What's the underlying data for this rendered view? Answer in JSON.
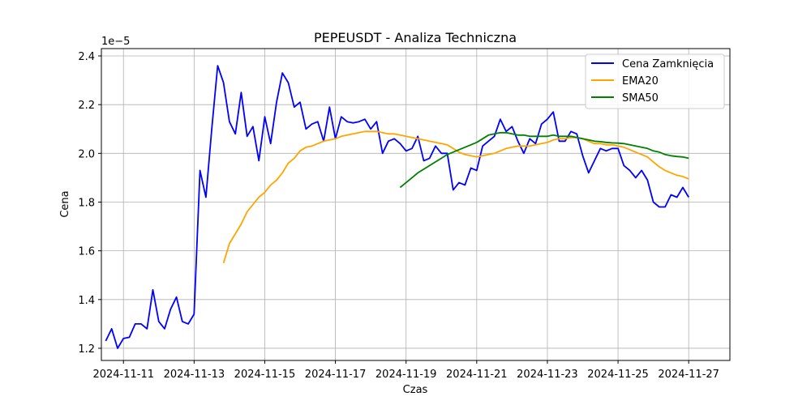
{
  "chart_data": {
    "type": "line",
    "title": "PEPEUSDT - Analiza Techniczna",
    "xlabel": "Czas",
    "ylabel": "Cena",
    "y_offset_label": "1e−5",
    "y_scale_multiplier": 1e-05,
    "x_ticks": [
      "2024-11-11",
      "2024-11-13",
      "2024-11-15",
      "2024-11-17",
      "2024-11-19",
      "2024-11-21",
      "2024-11-23",
      "2024-11-25",
      "2024-11-27"
    ],
    "y_ticks": [
      1.2,
      1.4,
      1.6,
      1.8,
      2.0,
      2.2,
      2.4
    ],
    "y_tick_labels": [
      "1.2",
      "1.4",
      "1.6",
      "1.8",
      "2.0",
      "2.2",
      "2.4"
    ],
    "xlim": [
      "2024-11-10T09:00",
      "2024-11-28T04:00"
    ],
    "ylim": [
      1.15,
      2.43
    ],
    "grid": true,
    "legend_position": "top-right",
    "series": [
      {
        "name": "Cena Zamknięcia",
        "color": "#0000ff",
        "points": [
          [
            "2024-11-10T12:00",
            1.23
          ],
          [
            "2024-11-10T16:00",
            1.28
          ],
          [
            "2024-11-10T20:00",
            1.2
          ],
          [
            "2024-11-11T00:00",
            1.24
          ],
          [
            "2024-11-11T04:00",
            1.245
          ],
          [
            "2024-11-11T08:00",
            1.3
          ],
          [
            "2024-11-11T12:00",
            1.3
          ],
          [
            "2024-11-11T16:00",
            1.28
          ],
          [
            "2024-11-11T20:00",
            1.44
          ],
          [
            "2024-11-12T00:00",
            1.31
          ],
          [
            "2024-11-12T04:00",
            1.28
          ],
          [
            "2024-11-12T08:00",
            1.36
          ],
          [
            "2024-11-12T12:00",
            1.41
          ],
          [
            "2024-11-12T16:00",
            1.31
          ],
          [
            "2024-11-12T20:00",
            1.3
          ],
          [
            "2024-11-13T00:00",
            1.34
          ],
          [
            "2024-11-13T04:00",
            1.93
          ],
          [
            "2024-11-13T08:00",
            1.82
          ],
          [
            "2024-11-13T12:00",
            2.1
          ],
          [
            "2024-11-13T16:00",
            2.36
          ],
          [
            "2024-11-13T20:00",
            2.29
          ],
          [
            "2024-11-14T00:00",
            2.13
          ],
          [
            "2024-11-14T04:00",
            2.08
          ],
          [
            "2024-11-14T08:00",
            2.25
          ],
          [
            "2024-11-14T12:00",
            2.07
          ],
          [
            "2024-11-14T16:00",
            2.11
          ],
          [
            "2024-11-14T20:00",
            1.97
          ],
          [
            "2024-11-15T00:00",
            2.15
          ],
          [
            "2024-11-15T04:00",
            2.04
          ],
          [
            "2024-11-15T08:00",
            2.21
          ],
          [
            "2024-11-15T12:00",
            2.33
          ],
          [
            "2024-11-15T16:00",
            2.29
          ],
          [
            "2024-11-15T20:00",
            2.19
          ],
          [
            "2024-11-16T00:00",
            2.21
          ],
          [
            "2024-11-16T04:00",
            2.1
          ],
          [
            "2024-11-16T08:00",
            2.12
          ],
          [
            "2024-11-16T12:00",
            2.13
          ],
          [
            "2024-11-16T16:00",
            2.05
          ],
          [
            "2024-11-16T20:00",
            2.19
          ],
          [
            "2024-11-17T00:00",
            2.06
          ],
          [
            "2024-11-17T04:00",
            2.15
          ],
          [
            "2024-11-17T08:00",
            2.13
          ],
          [
            "2024-11-17T12:00",
            2.125
          ],
          [
            "2024-11-17T16:00",
            2.13
          ],
          [
            "2024-11-17T20:00",
            2.14
          ],
          [
            "2024-11-18T00:00",
            2.1
          ],
          [
            "2024-11-18T04:00",
            2.13
          ],
          [
            "2024-11-18T08:00",
            2.0
          ],
          [
            "2024-11-18T12:00",
            2.05
          ],
          [
            "2024-11-18T16:00",
            2.06
          ],
          [
            "2024-11-18T20:00",
            2.04
          ],
          [
            "2024-11-19T00:00",
            2.01
          ],
          [
            "2024-11-19T04:00",
            2.02
          ],
          [
            "2024-11-19T08:00",
            2.07
          ],
          [
            "2024-11-19T12:00",
            1.97
          ],
          [
            "2024-11-19T16:00",
            1.98
          ],
          [
            "2024-11-19T20:00",
            2.03
          ],
          [
            "2024-11-20T00:00",
            2.0
          ],
          [
            "2024-11-20T04:00",
            2.0
          ],
          [
            "2024-11-20T08:00",
            1.85
          ],
          [
            "2024-11-20T12:00",
            1.88
          ],
          [
            "2024-11-20T16:00",
            1.87
          ],
          [
            "2024-11-20T20:00",
            1.94
          ],
          [
            "2024-11-21T00:00",
            1.93
          ],
          [
            "2024-11-21T04:00",
            2.03
          ],
          [
            "2024-11-21T08:00",
            2.05
          ],
          [
            "2024-11-21T12:00",
            2.07
          ],
          [
            "2024-11-21T16:00",
            2.14
          ],
          [
            "2024-11-21T20:00",
            2.09
          ],
          [
            "2024-11-22T00:00",
            2.11
          ],
          [
            "2024-11-22T04:00",
            2.05
          ],
          [
            "2024-11-22T08:00",
            2.0
          ],
          [
            "2024-11-22T12:00",
            2.06
          ],
          [
            "2024-11-22T16:00",
            2.04
          ],
          [
            "2024-11-22T20:00",
            2.12
          ],
          [
            "2024-11-23T00:00",
            2.14
          ],
          [
            "2024-11-23T04:00",
            2.17
          ],
          [
            "2024-11-23T08:00",
            2.05
          ],
          [
            "2024-11-23T12:00",
            2.05
          ],
          [
            "2024-11-23T16:00",
            2.09
          ],
          [
            "2024-11-23T20:00",
            2.08
          ],
          [
            "2024-11-24T00:00",
            1.99
          ],
          [
            "2024-11-24T04:00",
            1.92
          ],
          [
            "2024-11-24T08:00",
            1.97
          ],
          [
            "2024-11-24T12:00",
            2.02
          ],
          [
            "2024-11-24T16:00",
            2.01
          ],
          [
            "2024-11-24T20:00",
            2.02
          ],
          [
            "2024-11-25T00:00",
            2.02
          ],
          [
            "2024-11-25T04:00",
            1.95
          ],
          [
            "2024-11-25T08:00",
            1.93
          ],
          [
            "2024-11-25T12:00",
            1.9
          ],
          [
            "2024-11-25T16:00",
            1.93
          ],
          [
            "2024-11-25T20:00",
            1.89
          ],
          [
            "2024-11-26T00:00",
            1.8
          ],
          [
            "2024-11-26T04:00",
            1.78
          ],
          [
            "2024-11-26T08:00",
            1.78
          ],
          [
            "2024-11-26T12:00",
            1.83
          ],
          [
            "2024-11-26T16:00",
            1.82
          ],
          [
            "2024-11-26T20:00",
            1.86
          ],
          [
            "2024-11-27T00:00",
            1.82
          ]
        ]
      },
      {
        "name": "EMA20",
        "color": "#ffa500",
        "points": [
          [
            "2024-11-13T20:00",
            1.55
          ],
          [
            "2024-11-14T00:00",
            1.63
          ],
          [
            "2024-11-14T04:00",
            1.67
          ],
          [
            "2024-11-14T08:00",
            1.71
          ],
          [
            "2024-11-14T12:00",
            1.76
          ],
          [
            "2024-11-14T16:00",
            1.79
          ],
          [
            "2024-11-14T20:00",
            1.82
          ],
          [
            "2024-11-15T00:00",
            1.84
          ],
          [
            "2024-11-15T04:00",
            1.87
          ],
          [
            "2024-11-15T08:00",
            1.89
          ],
          [
            "2024-11-15T12:00",
            1.92
          ],
          [
            "2024-11-15T16:00",
            1.96
          ],
          [
            "2024-11-15T20:00",
            1.98
          ],
          [
            "2024-11-16T00:00",
            2.01
          ],
          [
            "2024-11-16T04:00",
            2.025
          ],
          [
            "2024-11-16T08:00",
            2.03
          ],
          [
            "2024-11-16T12:00",
            2.04
          ],
          [
            "2024-11-16T16:00",
            2.05
          ],
          [
            "2024-11-16T20:00",
            2.055
          ],
          [
            "2024-11-17T00:00",
            2.06
          ],
          [
            "2024-11-17T04:00",
            2.07
          ],
          [
            "2024-11-17T08:00",
            2.075
          ],
          [
            "2024-11-17T12:00",
            2.08
          ],
          [
            "2024-11-17T16:00",
            2.085
          ],
          [
            "2024-11-17T20:00",
            2.09
          ],
          [
            "2024-11-18T00:00",
            2.09
          ],
          [
            "2024-11-18T04:00",
            2.09
          ],
          [
            "2024-11-18T08:00",
            2.085
          ],
          [
            "2024-11-18T12:00",
            2.08
          ],
          [
            "2024-11-18T16:00",
            2.08
          ],
          [
            "2024-11-18T20:00",
            2.075
          ],
          [
            "2024-11-19T00:00",
            2.07
          ],
          [
            "2024-11-19T04:00",
            2.065
          ],
          [
            "2024-11-19T08:00",
            2.06
          ],
          [
            "2024-11-19T12:00",
            2.055
          ],
          [
            "2024-11-19T16:00",
            2.05
          ],
          [
            "2024-11-19T20:00",
            2.045
          ],
          [
            "2024-11-20T00:00",
            2.04
          ],
          [
            "2024-11-20T04:00",
            2.035
          ],
          [
            "2024-11-20T08:00",
            2.02
          ],
          [
            "2024-11-20T12:00",
            2.005
          ],
          [
            "2024-11-20T16:00",
            1.995
          ],
          [
            "2024-11-20T20:00",
            1.99
          ],
          [
            "2024-11-21T00:00",
            1.985
          ],
          [
            "2024-11-21T04:00",
            1.99
          ],
          [
            "2024-11-21T08:00",
            1.995
          ],
          [
            "2024-11-21T12:00",
            2.0
          ],
          [
            "2024-11-21T16:00",
            2.01
          ],
          [
            "2024-11-21T20:00",
            2.02
          ],
          [
            "2024-11-22T00:00",
            2.025
          ],
          [
            "2024-11-22T04:00",
            2.03
          ],
          [
            "2024-11-22T08:00",
            2.03
          ],
          [
            "2024-11-22T12:00",
            2.03
          ],
          [
            "2024-11-22T16:00",
            2.035
          ],
          [
            "2024-11-22T20:00",
            2.04
          ],
          [
            "2024-11-23T00:00",
            2.045
          ],
          [
            "2024-11-23T04:00",
            2.055
          ],
          [
            "2024-11-23T08:00",
            2.06
          ],
          [
            "2024-11-23T12:00",
            2.06
          ],
          [
            "2024-11-23T16:00",
            2.065
          ],
          [
            "2024-11-23T20:00",
            2.065
          ],
          [
            "2024-11-24T00:00",
            2.06
          ],
          [
            "2024-11-24T04:00",
            2.05
          ],
          [
            "2024-11-24T08:00",
            2.04
          ],
          [
            "2024-11-24T12:00",
            2.04
          ],
          [
            "2024-11-24T16:00",
            2.035
          ],
          [
            "2024-11-24T20:00",
            2.035
          ],
          [
            "2024-11-25T00:00",
            2.03
          ],
          [
            "2024-11-25T04:00",
            2.025
          ],
          [
            "2024-11-25T08:00",
            2.015
          ],
          [
            "2024-11-25T12:00",
            2.005
          ],
          [
            "2024-11-25T16:00",
            1.995
          ],
          [
            "2024-11-25T20:00",
            1.985
          ],
          [
            "2024-11-26T00:00",
            1.965
          ],
          [
            "2024-11-26T04:00",
            1.945
          ],
          [
            "2024-11-26T08:00",
            1.93
          ],
          [
            "2024-11-26T12:00",
            1.92
          ],
          [
            "2024-11-26T16:00",
            1.91
          ],
          [
            "2024-11-26T20:00",
            1.905
          ],
          [
            "2024-11-27T00:00",
            1.895
          ]
        ]
      },
      {
        "name": "SMA50",
        "color": "#008000",
        "points": [
          [
            "2024-11-18T20:00",
            1.86
          ],
          [
            "2024-11-19T00:00",
            1.88
          ],
          [
            "2024-11-19T04:00",
            1.9
          ],
          [
            "2024-11-19T08:00",
            1.92
          ],
          [
            "2024-11-19T12:00",
            1.935
          ],
          [
            "2024-11-19T16:00",
            1.95
          ],
          [
            "2024-11-19T20:00",
            1.965
          ],
          [
            "2024-11-20T00:00",
            1.98
          ],
          [
            "2024-11-20T04:00",
            1.995
          ],
          [
            "2024-11-20T08:00",
            2.005
          ],
          [
            "2024-11-20T12:00",
            2.015
          ],
          [
            "2024-11-20T16:00",
            2.025
          ],
          [
            "2024-11-20T20:00",
            2.035
          ],
          [
            "2024-11-21T00:00",
            2.045
          ],
          [
            "2024-11-21T04:00",
            2.06
          ],
          [
            "2024-11-21T08:00",
            2.075
          ],
          [
            "2024-11-21T12:00",
            2.08
          ],
          [
            "2024-11-21T16:00",
            2.085
          ],
          [
            "2024-11-21T20:00",
            2.085
          ],
          [
            "2024-11-22T00:00",
            2.08
          ],
          [
            "2024-11-22T04:00",
            2.075
          ],
          [
            "2024-11-22T08:00",
            2.075
          ],
          [
            "2024-11-22T12:00",
            2.07
          ],
          [
            "2024-11-22T16:00",
            2.07
          ],
          [
            "2024-11-22T20:00",
            2.07
          ],
          [
            "2024-11-23T00:00",
            2.07
          ],
          [
            "2024-11-23T04:00",
            2.075
          ],
          [
            "2024-11-23T08:00",
            2.07
          ],
          [
            "2024-11-23T12:00",
            2.07
          ],
          [
            "2024-11-23T16:00",
            2.07
          ],
          [
            "2024-11-23T20:00",
            2.065
          ],
          [
            "2024-11-24T00:00",
            2.06
          ],
          [
            "2024-11-24T04:00",
            2.055
          ],
          [
            "2024-11-24T08:00",
            2.05
          ],
          [
            "2024-11-24T12:00",
            2.048
          ],
          [
            "2024-11-24T16:00",
            2.045
          ],
          [
            "2024-11-24T20:00",
            2.043
          ],
          [
            "2024-11-25T00:00",
            2.042
          ],
          [
            "2024-11-25T04:00",
            2.04
          ],
          [
            "2024-11-25T08:00",
            2.035
          ],
          [
            "2024-11-25T12:00",
            2.03
          ],
          [
            "2024-11-25T16:00",
            2.025
          ],
          [
            "2024-11-25T20:00",
            2.02
          ],
          [
            "2024-11-26T00:00",
            2.01
          ],
          [
            "2024-11-26T04:00",
            2.005
          ],
          [
            "2024-11-26T08:00",
            1.995
          ],
          [
            "2024-11-26T12:00",
            1.99
          ],
          [
            "2024-11-26T16:00",
            1.987
          ],
          [
            "2024-11-26T20:00",
            1.985
          ],
          [
            "2024-11-27T00:00",
            1.98
          ]
        ]
      }
    ]
  }
}
